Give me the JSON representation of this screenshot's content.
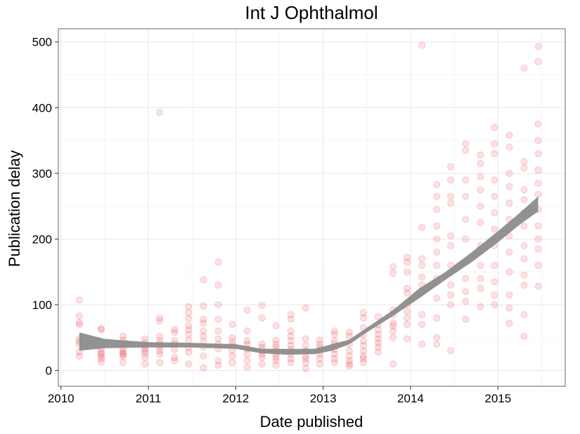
{
  "chart_data": {
    "type": "scatter",
    "title": "Int J Ophthalmol",
    "xlabel": "Date published",
    "ylabel": "Publication delay",
    "xlim": [
      2009.97,
      2015.77
    ],
    "ylim": [
      -24,
      520
    ],
    "x_ticks": [
      2010,
      2011,
      2012,
      2013,
      2014,
      2015
    ],
    "y_ticks": [
      0,
      100,
      200,
      300,
      400,
      500
    ],
    "grid": true,
    "legend": "none",
    "point_color": "#e41a1c",
    "smooth_color": "#8c8c8c",
    "points": [
      [
        2010.21,
        107
      ],
      [
        2010.21,
        83
      ],
      [
        2010.21,
        73
      ],
      [
        2010.21,
        70
      ],
      [
        2010.21,
        48
      ],
      [
        2010.21,
        44
      ],
      [
        2010.21,
        40
      ],
      [
        2010.21,
        28
      ],
      [
        2010.21,
        22
      ],
      [
        2010.46,
        64
      ],
      [
        2010.46,
        62
      ],
      [
        2010.46,
        33
      ],
      [
        2010.46,
        28
      ],
      [
        2010.46,
        25
      ],
      [
        2010.46,
        22
      ],
      [
        2010.46,
        18
      ],
      [
        2010.46,
        13
      ],
      [
        2010.71,
        52
      ],
      [
        2010.71,
        46
      ],
      [
        2010.71,
        33
      ],
      [
        2010.71,
        29
      ],
      [
        2010.71,
        26
      ],
      [
        2010.71,
        24
      ],
      [
        2010.71,
        21
      ],
      [
        2010.71,
        12
      ],
      [
        2010.96,
        48
      ],
      [
        2010.96,
        42
      ],
      [
        2010.96,
        38
      ],
      [
        2010.96,
        33
      ],
      [
        2010.96,
        30
      ],
      [
        2010.96,
        26
      ],
      [
        2010.96,
        20
      ],
      [
        2010.96,
        10
      ],
      [
        2011.13,
        393
      ],
      [
        2011.13,
        80
      ],
      [
        2011.13,
        75
      ],
      [
        2011.13,
        52
      ],
      [
        2011.13,
        45
      ],
      [
        2011.13,
        40
      ],
      [
        2011.13,
        36
      ],
      [
        2011.13,
        30
      ],
      [
        2011.13,
        25
      ],
      [
        2011.13,
        12
      ],
      [
        2011.3,
        62
      ],
      [
        2011.3,
        58
      ],
      [
        2011.3,
        45
      ],
      [
        2011.3,
        40
      ],
      [
        2011.3,
        32
      ],
      [
        2011.3,
        20
      ],
      [
        2011.3,
        15
      ],
      [
        2011.46,
        97
      ],
      [
        2011.46,
        88
      ],
      [
        2011.46,
        79
      ],
      [
        2011.46,
        68
      ],
      [
        2011.46,
        62
      ],
      [
        2011.46,
        55
      ],
      [
        2011.46,
        46
      ],
      [
        2011.46,
        35
      ],
      [
        2011.46,
        28
      ],
      [
        2011.46,
        10
      ],
      [
        2011.63,
        138
      ],
      [
        2011.63,
        98
      ],
      [
        2011.63,
        78
      ],
      [
        2011.63,
        72
      ],
      [
        2011.63,
        60
      ],
      [
        2011.63,
        52
      ],
      [
        2011.63,
        44
      ],
      [
        2011.63,
        36
      ],
      [
        2011.63,
        22
      ],
      [
        2011.63,
        4
      ],
      [
        2011.8,
        165
      ],
      [
        2011.8,
        130
      ],
      [
        2011.8,
        100
      ],
      [
        2011.8,
        78
      ],
      [
        2011.8,
        60
      ],
      [
        2011.8,
        48
      ],
      [
        2011.8,
        40
      ],
      [
        2011.8,
        33
      ],
      [
        2011.8,
        15
      ],
      [
        2011.8,
        8
      ],
      [
        2011.96,
        70
      ],
      [
        2011.96,
        50
      ],
      [
        2011.96,
        43
      ],
      [
        2011.96,
        38
      ],
      [
        2011.96,
        30
      ],
      [
        2011.96,
        22
      ],
      [
        2011.96,
        12
      ],
      [
        2012.13,
        92
      ],
      [
        2012.13,
        60
      ],
      [
        2012.13,
        45
      ],
      [
        2012.13,
        40
      ],
      [
        2012.13,
        33
      ],
      [
        2012.13,
        25
      ],
      [
        2012.13,
        15
      ],
      [
        2012.13,
        5
      ],
      [
        2012.3,
        99
      ],
      [
        2012.3,
        80
      ],
      [
        2012.3,
        40
      ],
      [
        2012.3,
        35
      ],
      [
        2012.3,
        30
      ],
      [
        2012.3,
        25
      ],
      [
        2012.3,
        20
      ],
      [
        2012.3,
        10
      ],
      [
        2012.46,
        68
      ],
      [
        2012.46,
        46
      ],
      [
        2012.46,
        40
      ],
      [
        2012.46,
        35
      ],
      [
        2012.46,
        30
      ],
      [
        2012.46,
        25
      ],
      [
        2012.46,
        20
      ],
      [
        2012.46,
        15
      ],
      [
        2012.46,
        8
      ],
      [
        2012.63,
        85
      ],
      [
        2012.63,
        78
      ],
      [
        2012.63,
        60
      ],
      [
        2012.63,
        52
      ],
      [
        2012.63,
        45
      ],
      [
        2012.63,
        38
      ],
      [
        2012.63,
        32
      ],
      [
        2012.63,
        25
      ],
      [
        2012.63,
        18
      ],
      [
        2012.63,
        12
      ],
      [
        2012.8,
        95
      ],
      [
        2012.8,
        48
      ],
      [
        2012.8,
        38
      ],
      [
        2012.8,
        30
      ],
      [
        2012.8,
        22
      ],
      [
        2012.8,
        18
      ],
      [
        2012.8,
        12
      ],
      [
        2012.8,
        3
      ],
      [
        2012.96,
        46
      ],
      [
        2012.96,
        40
      ],
      [
        2012.96,
        35
      ],
      [
        2012.96,
        30
      ],
      [
        2012.96,
        25
      ],
      [
        2012.96,
        18
      ],
      [
        2012.96,
        10
      ],
      [
        2013.13,
        60
      ],
      [
        2013.13,
        55
      ],
      [
        2013.13,
        45
      ],
      [
        2013.13,
        40
      ],
      [
        2013.13,
        32
      ],
      [
        2013.13,
        25
      ],
      [
        2013.13,
        18
      ],
      [
        2013.13,
        12
      ],
      [
        2013.3,
        58
      ],
      [
        2013.3,
        52
      ],
      [
        2013.3,
        40
      ],
      [
        2013.3,
        30
      ],
      [
        2013.3,
        22
      ],
      [
        2013.3,
        15
      ],
      [
        2013.3,
        10
      ],
      [
        2013.3,
        7
      ],
      [
        2013.46,
        88
      ],
      [
        2013.46,
        80
      ],
      [
        2013.46,
        65
      ],
      [
        2013.46,
        55
      ],
      [
        2013.46,
        45
      ],
      [
        2013.46,
        38
      ],
      [
        2013.46,
        30
      ],
      [
        2013.46,
        22
      ],
      [
        2013.46,
        18
      ],
      [
        2013.46,
        12
      ],
      [
        2013.63,
        82
      ],
      [
        2013.63,
        70
      ],
      [
        2013.63,
        62
      ],
      [
        2013.63,
        55
      ],
      [
        2013.63,
        48
      ],
      [
        2013.63,
        42
      ],
      [
        2013.63,
        36
      ],
      [
        2013.63,
        28
      ],
      [
        2013.8,
        158
      ],
      [
        2013.8,
        148
      ],
      [
        2013.8,
        92
      ],
      [
        2013.8,
        85
      ],
      [
        2013.8,
        72
      ],
      [
        2013.8,
        68
      ],
      [
        2013.8,
        60
      ],
      [
        2013.8,
        50
      ],
      [
        2013.8,
        10
      ],
      [
        2013.96,
        172
      ],
      [
        2013.96,
        165
      ],
      [
        2013.96,
        150
      ],
      [
        2013.96,
        125
      ],
      [
        2013.96,
        118
      ],
      [
        2013.96,
        100
      ],
      [
        2013.96,
        90
      ],
      [
        2013.96,
        80
      ],
      [
        2013.96,
        70
      ],
      [
        2013.96,
        48
      ],
      [
        2014.13,
        495
      ],
      [
        2014.13,
        218
      ],
      [
        2014.13,
        170
      ],
      [
        2014.13,
        160
      ],
      [
        2014.13,
        142
      ],
      [
        2014.13,
        130
      ],
      [
        2014.13,
        120
      ],
      [
        2014.13,
        85
      ],
      [
        2014.13,
        70
      ],
      [
        2014.13,
        40
      ],
      [
        2014.3,
        283
      ],
      [
        2014.3,
        265
      ],
      [
        2014.3,
        245
      ],
      [
        2014.3,
        220
      ],
      [
        2014.3,
        200
      ],
      [
        2014.3,
        180
      ],
      [
        2014.3,
        160
      ],
      [
        2014.3,
        140
      ],
      [
        2014.3,
        110
      ],
      [
        2014.3,
        80
      ],
      [
        2014.3,
        50
      ],
      [
        2014.3,
        40
      ],
      [
        2014.46,
        310
      ],
      [
        2014.46,
        290
      ],
      [
        2014.46,
        265
      ],
      [
        2014.46,
        255
      ],
      [
        2014.46,
        205
      ],
      [
        2014.46,
        190
      ],
      [
        2014.46,
        160
      ],
      [
        2014.46,
        130
      ],
      [
        2014.46,
        115
      ],
      [
        2014.46,
        100
      ],
      [
        2014.46,
        30
      ],
      [
        2014.63,
        345
      ],
      [
        2014.63,
        335
      ],
      [
        2014.63,
        290
      ],
      [
        2014.63,
        265
      ],
      [
        2014.63,
        230
      ],
      [
        2014.63,
        200
      ],
      [
        2014.63,
        165
      ],
      [
        2014.63,
        140
      ],
      [
        2014.63,
        120
      ],
      [
        2014.63,
        105
      ],
      [
        2014.63,
        78
      ],
      [
        2014.8,
        328
      ],
      [
        2014.8,
        315
      ],
      [
        2014.8,
        295
      ],
      [
        2014.8,
        275
      ],
      [
        2014.8,
        250
      ],
      [
        2014.8,
        225
      ],
      [
        2014.8,
        190
      ],
      [
        2014.8,
        160
      ],
      [
        2014.8,
        140
      ],
      [
        2014.8,
        125
      ],
      [
        2014.8,
        97
      ],
      [
        2014.96,
        370
      ],
      [
        2014.96,
        345
      ],
      [
        2014.96,
        330
      ],
      [
        2014.96,
        290
      ],
      [
        2014.96,
        265
      ],
      [
        2014.96,
        240
      ],
      [
        2014.96,
        215
      ],
      [
        2014.96,
        190
      ],
      [
        2014.96,
        160
      ],
      [
        2014.96,
        135
      ],
      [
        2014.96,
        115
      ],
      [
        2014.96,
        100
      ],
      [
        2015.13,
        358
      ],
      [
        2015.13,
        340
      ],
      [
        2015.13,
        300
      ],
      [
        2015.13,
        280
      ],
      [
        2015.13,
        255
      ],
      [
        2015.13,
        230
      ],
      [
        2015.13,
        205
      ],
      [
        2015.13,
        180
      ],
      [
        2015.13,
        150
      ],
      [
        2015.13,
        115
      ],
      [
        2015.13,
        95
      ],
      [
        2015.13,
        72
      ],
      [
        2015.3,
        460
      ],
      [
        2015.3,
        318
      ],
      [
        2015.3,
        308
      ],
      [
        2015.3,
        275
      ],
      [
        2015.3,
        260
      ],
      [
        2015.3,
        240
      ],
      [
        2015.3,
        220
      ],
      [
        2015.3,
        190
      ],
      [
        2015.3,
        170
      ],
      [
        2015.3,
        145
      ],
      [
        2015.3,
        130
      ],
      [
        2015.3,
        85
      ],
      [
        2015.3,
        52
      ],
      [
        2015.46,
        493
      ],
      [
        2015.46,
        470
      ],
      [
        2015.46,
        375
      ],
      [
        2015.46,
        350
      ],
      [
        2015.46,
        330
      ],
      [
        2015.46,
        305
      ],
      [
        2015.46,
        285
      ],
      [
        2015.46,
        268
      ],
      [
        2015.46,
        245
      ],
      [
        2015.46,
        220
      ],
      [
        2015.46,
        200
      ],
      [
        2015.46,
        185
      ],
      [
        2015.46,
        160
      ],
      [
        2015.46,
        128
      ]
    ],
    "smooth": {
      "x": [
        2010.21,
        2010.5,
        2011.0,
        2011.5,
        2012.0,
        2012.3,
        2012.6,
        2012.9,
        2013.1,
        2013.3,
        2013.5,
        2013.8,
        2014.1,
        2014.4,
        2014.7,
        2015.0,
        2015.25,
        2015.46
      ],
      "lower": [
        30,
        34,
        35,
        35,
        33,
        26,
        24,
        25,
        30,
        40,
        58,
        83,
        110,
        138,
        165,
        195,
        222,
        242
      ],
      "upper": [
        58,
        48,
        43,
        42,
        40,
        33,
        33,
        33,
        40,
        47,
        65,
        92,
        125,
        150,
        180,
        212,
        240,
        265
      ]
    }
  }
}
